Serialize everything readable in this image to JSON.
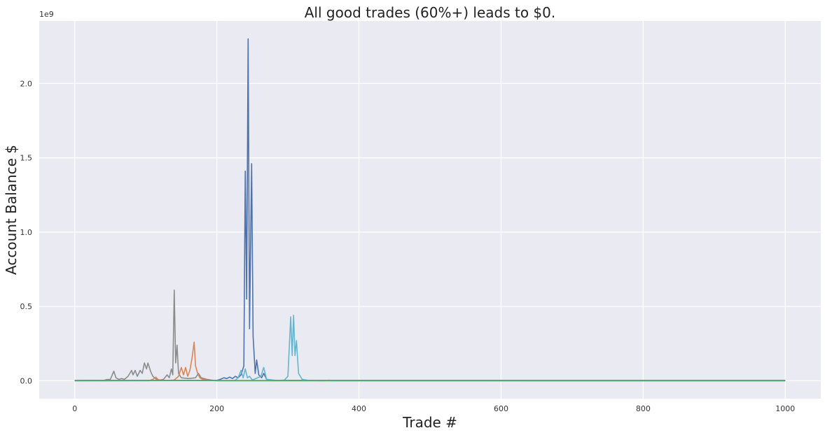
{
  "chart_data": {
    "type": "line",
    "title": "All good trades (60%+) leads to $0.",
    "xlabel": "Trade #",
    "ylabel": "Account Balance $",
    "y_offset_label": "1e9",
    "xlim": [
      -50,
      1050
    ],
    "ylim": [
      -0.12,
      2.42
    ],
    "x_ticks": [
      0,
      200,
      400,
      600,
      800,
      1000
    ],
    "y_ticks": [
      0.0,
      0.5,
      1.0,
      1.5,
      2.0
    ],
    "y_tick_labels": [
      "0.0",
      "0.5",
      "1.0",
      "1.5",
      "2.0"
    ],
    "grid": true,
    "legend": "none",
    "colors": [
      "#8c8c8c",
      "#dd8452",
      "#4c72b0",
      "#64b5cd",
      "#55a868"
    ],
    "series": [
      {
        "color": "#8c8c8c",
        "points": [
          [
            0,
            0.001
          ],
          [
            40,
            0.002
          ],
          [
            45,
            0.008
          ],
          [
            50,
            0.01
          ],
          [
            52,
            0.03
          ],
          [
            55,
            0.065
          ],
          [
            58,
            0.02
          ],
          [
            62,
            0.01
          ],
          [
            66,
            0.015
          ],
          [
            70,
            0.01
          ],
          [
            75,
            0.03
          ],
          [
            80,
            0.07
          ],
          [
            82,
            0.04
          ],
          [
            85,
            0.07
          ],
          [
            88,
            0.03
          ],
          [
            92,
            0.07
          ],
          [
            95,
            0.05
          ],
          [
            98,
            0.12
          ],
          [
            101,
            0.08
          ],
          [
            103,
            0.12
          ],
          [
            107,
            0.06
          ],
          [
            110,
            0.03
          ],
          [
            115,
            0.01
          ],
          [
            120,
            0.005
          ],
          [
            125,
            0.01
          ],
          [
            130,
            0.04
          ],
          [
            133,
            0.02
          ],
          [
            136,
            0.08
          ],
          [
            138,
            0.04
          ],
          [
            140,
            0.61
          ],
          [
            142,
            0.12
          ],
          [
            144,
            0.24
          ],
          [
            146,
            0.05
          ],
          [
            150,
            0.02
          ],
          [
            160,
            0.015
          ],
          [
            170,
            0.02
          ],
          [
            174,
            0.05
          ],
          [
            178,
            0.02
          ],
          [
            182,
            0.015
          ],
          [
            186,
            0.01
          ],
          [
            192,
            0.005
          ],
          [
            200,
            0.001
          ],
          [
            1000,
            0.0
          ]
        ]
      },
      {
        "color": "#dd8452",
        "points": [
          [
            0,
            0.0
          ],
          [
            105,
            0.001
          ],
          [
            110,
            0.01
          ],
          [
            114,
            0.025
          ],
          [
            118,
            0.005
          ],
          [
            130,
            0.002
          ],
          [
            140,
            0.005
          ],
          [
            146,
            0.03
          ],
          [
            150,
            0.09
          ],
          [
            153,
            0.04
          ],
          [
            156,
            0.09
          ],
          [
            159,
            0.03
          ],
          [
            162,
            0.07
          ],
          [
            165,
            0.15
          ],
          [
            168,
            0.26
          ],
          [
            170,
            0.1
          ],
          [
            173,
            0.05
          ],
          [
            176,
            0.02
          ],
          [
            180,
            0.01
          ],
          [
            190,
            0.002
          ],
          [
            200,
            0.0
          ],
          [
            1000,
            0.0
          ]
        ]
      },
      {
        "color": "#4c72b0",
        "points": [
          [
            0,
            0.003
          ],
          [
            200,
            0.003
          ],
          [
            205,
            0.01
          ],
          [
            210,
            0.02
          ],
          [
            214,
            0.015
          ],
          [
            218,
            0.025
          ],
          [
            222,
            0.015
          ],
          [
            226,
            0.03
          ],
          [
            230,
            0.02
          ],
          [
            234,
            0.04
          ],
          [
            238,
            0.1
          ],
          [
            240,
            1.41
          ],
          [
            242,
            0.55
          ],
          [
            244,
            2.3
          ],
          [
            246,
            0.35
          ],
          [
            249,
            1.46
          ],
          [
            251,
            0.3
          ],
          [
            254,
            0.05
          ],
          [
            256,
            0.14
          ],
          [
            259,
            0.04
          ],
          [
            263,
            0.02
          ],
          [
            266,
            0.05
          ],
          [
            270,
            0.01
          ],
          [
            280,
            0.003
          ],
          [
            1000,
            0.003
          ]
        ]
      },
      {
        "color": "#64b5cd",
        "points": [
          [
            0,
            0.0
          ],
          [
            225,
            0.002
          ],
          [
            230,
            0.02
          ],
          [
            234,
            0.07
          ],
          [
            237,
            0.02
          ],
          [
            240,
            0.08
          ],
          [
            243,
            0.02
          ],
          [
            246,
            0.03
          ],
          [
            250,
            0.005
          ],
          [
            262,
            0.03
          ],
          [
            266,
            0.09
          ],
          [
            270,
            0.01
          ],
          [
            285,
            0.002
          ],
          [
            295,
            0.005
          ],
          [
            300,
            0.03
          ],
          [
            304,
            0.43
          ],
          [
            306,
            0.17
          ],
          [
            308,
            0.44
          ],
          [
            310,
            0.17
          ],
          [
            312,
            0.27
          ],
          [
            315,
            0.05
          ],
          [
            320,
            0.01
          ],
          [
            330,
            0.002
          ],
          [
            350,
            0.0
          ],
          [
            358,
            0.004
          ],
          [
            362,
            0.0
          ],
          [
            1000,
            0.0
          ]
        ]
      },
      {
        "color": "#55a868",
        "points": [
          [
            0,
            0.002
          ],
          [
            1000,
            0.002
          ]
        ]
      }
    ]
  }
}
